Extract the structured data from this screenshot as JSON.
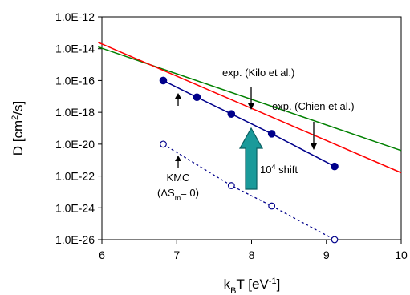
{
  "chart_data": {
    "type": "line",
    "title": "",
    "xlabel": {
      "base": "k",
      "sub": "B",
      "rest": "T  [eV",
      "sup": "-1",
      "close": "]"
    },
    "ylabel": {
      "base": "D [cm",
      "sup": "2",
      "rest": "/s]"
    },
    "xlim": [
      6,
      10
    ],
    "ylim_log10": [
      -26,
      -12
    ],
    "y_scale": "log",
    "grid": false,
    "legend": "none",
    "x_ticks": [
      "6",
      "7",
      "8",
      "9",
      "10"
    ],
    "y_ticks": [
      {
        "log": -12,
        "label": "1.0E-12"
      },
      {
        "log": -14,
        "label": "1.0E-14"
      },
      {
        "log": -16,
        "label": "1.0E-16"
      },
      {
        "log": -18,
        "label": "1.0E-18"
      },
      {
        "log": -20,
        "label": "1.0E-20"
      },
      {
        "log": -22,
        "label": "1.0E-22"
      },
      {
        "log": -24,
        "label": "1.0E-24"
      },
      {
        "log": -26,
        "label": "1.0E-26"
      }
    ],
    "series": [
      {
        "name": "exp. (Kilo et al.)",
        "color": "#008000",
        "style": "solid-line",
        "points": [
          {
            "x": 5.95,
            "y": "1.3E-14"
          },
          {
            "x": 10.0,
            "y": "4.0E-21"
          }
        ]
      },
      {
        "name": "exp. (Chien et al.)",
        "color": "#ff0000",
        "style": "solid-line",
        "points": [
          {
            "x": 5.95,
            "y": "2.5E-14"
          },
          {
            "x": 10.0,
            "y": "1.6E-22"
          }
        ]
      },
      {
        "name": "",
        "color": "#00008b",
        "style": "filled-markers-line",
        "points": [
          {
            "x": 6.82,
            "y": "1.0E-16"
          },
          {
            "x": 7.27,
            "y": "8.9E-18"
          },
          {
            "x": 7.73,
            "y": "7.9E-19"
          },
          {
            "x": 8.27,
            "y": "4.5E-20"
          },
          {
            "x": 9.11,
            "y": "4.0E-22"
          }
        ]
      },
      {
        "name": "KMC (ΔSm= 0)",
        "color": "#00008b",
        "style": "open-markers-dotted",
        "points": [
          {
            "x": 6.82,
            "y": "1.0E-20"
          },
          {
            "x": 7.73,
            "y": "2.5E-23"
          },
          {
            "x": 8.27,
            "y": "1.3E-24"
          },
          {
            "x": 9.11,
            "y": "1.0E-26"
          }
        ]
      }
    ],
    "annotations": {
      "kilo": "exp. (Kilo et al.)",
      "chien": "exp. (Chien et al.)",
      "kmc": "KMC",
      "kmc_params": {
        "open": "(",
        "delta": "ΔS",
        "sub": "m",
        "rest": "= 0)"
      },
      "shift": {
        "base": "10",
        "sup": "4",
        "rest": " shift"
      }
    },
    "colors": {
      "arrow_fill": "#1a9a9a",
      "arrow_stroke": "#0b5f61"
    }
  }
}
